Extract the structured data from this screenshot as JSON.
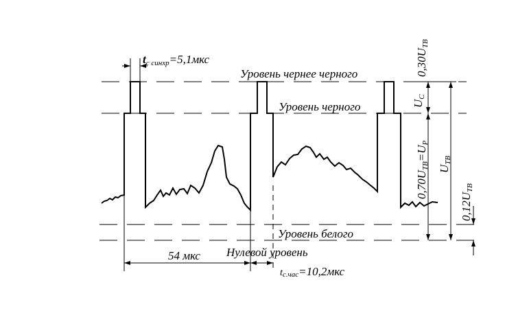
{
  "levels": {
    "blacker": "Уровень чернее черного",
    "black": "Уровень черного",
    "white": "Уровень белого",
    "zero": "Нулевой уровень"
  },
  "timing": {
    "sync": {
      "symbol": "t",
      "sub": "с синхр",
      "value": "=5,1мкс"
    },
    "line": "54 мкс",
    "clock": {
      "symbol": "t",
      "sub": "с.час",
      "value": "=10,2мкс"
    }
  },
  "amplitudes": {
    "sync_share": {
      "main": "0,30U",
      "sub": "ТВ"
    },
    "sync": {
      "main": "U",
      "sub": "C"
    },
    "picture": {
      "main": "0,70U",
      "sub": "ТВ",
      "eq": "=U",
      "sub2": "P"
    },
    "full": {
      "main": "U",
      "sub": "ТВ"
    },
    "white_share": {
      "main": "0,12U",
      "sub": "ТВ"
    }
  }
}
